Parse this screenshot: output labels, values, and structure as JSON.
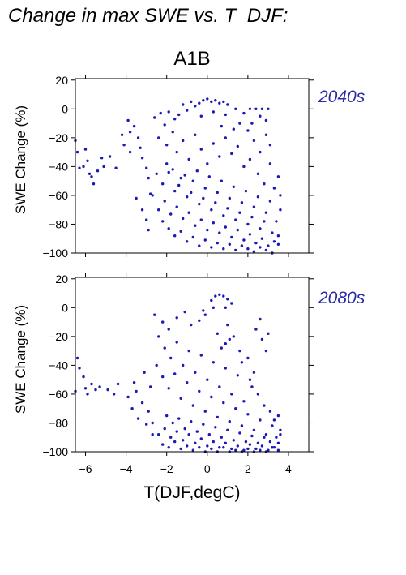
{
  "figure": {
    "title": "Change in max SWE vs. T_DJF:",
    "scenario": "A1B",
    "xlabel": "T(DJF,degC)",
    "point_color": "#1a1ab4",
    "label_color": "#2a2aa8"
  },
  "chart_data": [
    {
      "type": "scatter",
      "period_label": "2040s",
      "ylabel": "SWE Change (%)",
      "xlabel": "",
      "xlim": [
        -6.5,
        5
      ],
      "ylim": [
        -100,
        21
      ],
      "xticks": [
        -6,
        -4,
        -2,
        0,
        2,
        4
      ],
      "yticks": [
        20,
        0,
        -20,
        -40,
        -60,
        -80,
        -100
      ],
      "x_tick_labels_shown": false,
      "grid": false,
      "points": [
        [
          -6.5,
          -22
        ],
        [
          -6.4,
          -30
        ],
        [
          -6.3,
          -41
        ],
        [
          -6.1,
          -40
        ],
        [
          -6.0,
          -28
        ],
        [
          -5.9,
          -36
        ],
        [
          -5.8,
          -45
        ],
        [
          -5.7,
          -47
        ],
        [
          -5.6,
          -52
        ],
        [
          -5.4,
          -43
        ],
        [
          -5.2,
          -34
        ],
        [
          -5.1,
          -40
        ],
        [
          -4.8,
          -33
        ],
        [
          -4.5,
          -41
        ],
        [
          -3.9,
          -8
        ],
        [
          -3.8,
          -16
        ],
        [
          -3.6,
          -12
        ],
        [
          -3.4,
          -20
        ],
        [
          -3.3,
          -27
        ],
        [
          -3.2,
          -34
        ],
        [
          -3.0,
          -41
        ],
        [
          -2.9,
          -48
        ],
        [
          -3.5,
          -62
        ],
        [
          -3.2,
          -70
        ],
        [
          -3.0,
          -77
        ],
        [
          -2.9,
          -84
        ],
        [
          -2.8,
          -59
        ],
        [
          -4.1,
          -25
        ],
        [
          -4.2,
          -18
        ],
        [
          -3.8,
          -30
        ],
        [
          -2.6,
          -6
        ],
        [
          -2.3,
          -3
        ],
        [
          -2.1,
          -11
        ],
        [
          -1.9,
          -2
        ],
        [
          -1.6,
          -7
        ],
        [
          -1.4,
          -4
        ],
        [
          -1.2,
          3
        ],
        [
          -1.0,
          -1
        ],
        [
          -0.8,
          5
        ],
        [
          -0.6,
          2
        ],
        [
          -0.4,
          4
        ],
        [
          -0.2,
          6
        ],
        [
          0.0,
          7
        ],
        [
          0.2,
          5
        ],
        [
          0.4,
          6
        ],
        [
          0.6,
          4
        ],
        [
          0.8,
          5
        ],
        [
          1.0,
          3
        ],
        [
          -0.3,
          -5
        ],
        [
          0.3,
          -2
        ],
        [
          0.9,
          -4
        ],
        [
          1.4,
          0
        ],
        [
          1.8,
          -3
        ],
        [
          2.1,
          0
        ],
        [
          2.4,
          0
        ],
        [
          2.7,
          0
        ],
        [
          3.0,
          0
        ],
        [
          2.6,
          -5
        ],
        [
          2.9,
          -8
        ],
        [
          2.2,
          -10
        ],
        [
          -2.4,
          -20
        ],
        [
          -2.0,
          -25
        ],
        [
          -1.7,
          -16
        ],
        [
          -1.5,
          -30
        ],
        [
          -1.2,
          -22
        ],
        [
          -0.9,
          -35
        ],
        [
          -0.6,
          -18
        ],
        [
          -0.3,
          -28
        ],
        [
          0.0,
          -38
        ],
        [
          0.3,
          -24
        ],
        [
          0.6,
          -33
        ],
        [
          0.9,
          -20
        ],
        [
          1.2,
          -31
        ],
        [
          1.5,
          -26
        ],
        [
          1.8,
          -40
        ],
        [
          2.1,
          -35
        ],
        [
          -2.5,
          -45
        ],
        [
          -2.2,
          -52
        ],
        [
          -1.9,
          -44
        ],
        [
          -1.6,
          -57
        ],
        [
          -1.3,
          -48
        ],
        [
          -1.0,
          -61
        ],
        [
          -0.7,
          -50
        ],
        [
          -0.4,
          -66
        ],
        [
          -0.1,
          -55
        ],
        [
          0.2,
          -70
        ],
        [
          0.5,
          -58
        ],
        [
          0.8,
          -74
        ],
        [
          1.1,
          -62
        ],
        [
          1.4,
          -77
        ],
        [
          1.7,
          -65
        ],
        [
          2.0,
          -80
        ],
        [
          2.3,
          -68
        ],
        [
          2.6,
          -83
        ],
        [
          2.9,
          -72
        ],
        [
          3.2,
          -86
        ],
        [
          3.4,
          -78
        ],
        [
          3.6,
          -70
        ],
        [
          3.5,
          -88
        ],
        [
          3.3,
          -92
        ],
        [
          3.0,
          -95
        ],
        [
          2.7,
          -90
        ],
        [
          2.4,
          -93
        ],
        [
          2.1,
          -87
        ],
        [
          1.8,
          -91
        ],
        [
          1.5,
          -84
        ],
        [
          1.2,
          -89
        ],
        [
          0.9,
          -82
        ],
        [
          0.6,
          -86
        ],
        [
          0.3,
          -79
        ],
        [
          0.0,
          -84
        ],
        [
          -0.3,
          -77
        ],
        [
          -0.6,
          -81
        ],
        [
          -0.9,
          -72
        ],
        [
          -1.2,
          -76
        ],
        [
          -1.5,
          -68
        ],
        [
          -1.8,
          -73
        ],
        [
          -2.1,
          -64
        ],
        [
          -2.4,
          -70
        ],
        [
          -2.7,
          -60
        ],
        [
          -2.2,
          -78
        ],
        [
          -1.9,
          -83
        ],
        [
          -1.6,
          -88
        ],
        [
          -1.3,
          -85
        ],
        [
          -1.0,
          -92
        ],
        [
          -0.7,
          -89
        ],
        [
          -0.4,
          -95
        ],
        [
          -0.1,
          -91
        ],
        [
          0.2,
          -96
        ],
        [
          0.5,
          -93
        ],
        [
          0.8,
          -97
        ],
        [
          1.1,
          -94
        ],
        [
          1.4,
          -98
        ],
        [
          1.7,
          -95
        ],
        [
          2.0,
          -97
        ],
        [
          2.3,
          -99
        ],
        [
          2.6,
          -96
        ],
        [
          2.9,
          -98
        ],
        [
          3.2,
          -100
        ],
        [
          3.5,
          -94
        ],
        [
          -2.0,
          -38
        ],
        [
          -1.7,
          -42
        ],
        [
          -1.4,
          -53
        ],
        [
          -1.1,
          -46
        ],
        [
          -0.8,
          -58
        ],
        [
          -0.5,
          -43
        ],
        [
          -0.2,
          -62
        ],
        [
          0.1,
          -47
        ],
        [
          0.4,
          -65
        ],
        [
          0.7,
          -50
        ],
        [
          1.0,
          -69
        ],
        [
          1.3,
          -54
        ],
        [
          1.6,
          -72
        ],
        [
          1.9,
          -57
        ],
        [
          2.2,
          -75
        ],
        [
          2.5,
          -61
        ],
        [
          2.8,
          -78
        ],
        [
          3.1,
          -64
        ],
        [
          2.5,
          -45
        ],
        [
          2.8,
          -52
        ],
        [
          3.1,
          -38
        ],
        [
          3.3,
          -55
        ],
        [
          3.5,
          -47
        ],
        [
          3.6,
          -60
        ],
        [
          2.0,
          -15
        ],
        [
          2.3,
          -22
        ],
        [
          2.6,
          -30
        ],
        [
          2.9,
          -18
        ],
        [
          3.1,
          -25
        ],
        [
          1.6,
          -10
        ],
        [
          1.3,
          -14
        ],
        [
          0.7,
          -12
        ]
      ]
    },
    {
      "type": "scatter",
      "period_label": "2080s",
      "ylabel": "SWE Change (%)",
      "xlabel": "T(DJF,degC)",
      "xlim": [
        -6.5,
        5
      ],
      "ylim": [
        -100,
        21
      ],
      "xticks": [
        -6,
        -4,
        -2,
        0,
        2,
        4
      ],
      "yticks": [
        20,
        0,
        -20,
        -40,
        -60,
        -80,
        -100
      ],
      "x_tick_labels_shown": true,
      "grid": false,
      "points": [
        [
          -6.5,
          -58
        ],
        [
          -6.4,
          -35
        ],
        [
          -6.3,
          -42
        ],
        [
          -6.1,
          -48
        ],
        [
          -6.0,
          -56
        ],
        [
          -5.9,
          -60
        ],
        [
          -5.7,
          -53
        ],
        [
          -5.5,
          -57
        ],
        [
          -5.3,
          -55
        ],
        [
          -4.9,
          -57
        ],
        [
          -4.6,
          -60
        ],
        [
          -4.4,
          -53
        ],
        [
          -3.9,
          -62
        ],
        [
          -3.7,
          -70
        ],
        [
          -3.5,
          -58
        ],
        [
          -3.4,
          -77
        ],
        [
          -3.2,
          -66
        ],
        [
          -3.0,
          -81
        ],
        [
          -2.9,
          -72
        ],
        [
          -2.7,
          -88
        ],
        [
          -3.6,
          -52
        ],
        [
          -3.1,
          -45
        ],
        [
          -2.8,
          -55
        ],
        [
          -2.6,
          -5
        ],
        [
          -2.2,
          -10
        ],
        [
          -1.9,
          -15
        ],
        [
          -1.5,
          -7
        ],
        [
          -1.1,
          -3
        ],
        [
          -0.8,
          -12
        ],
        [
          -0.4,
          -9
        ],
        [
          -0.1,
          -5
        ],
        [
          0.2,
          5
        ],
        [
          0.4,
          8
        ],
        [
          0.6,
          9
        ],
        [
          0.8,
          8
        ],
        [
          1.0,
          6
        ],
        [
          1.2,
          3
        ],
        [
          0.9,
          0
        ],
        [
          0.3,
          0
        ],
        [
          -0.2,
          -2
        ],
        [
          0.5,
          -18
        ],
        [
          0.9,
          -25
        ],
        [
          1.3,
          -20
        ],
        [
          1.0,
          -12
        ],
        [
          2.4,
          -15
        ],
        [
          2.7,
          -22
        ],
        [
          2.9,
          -30
        ],
        [
          3.0,
          -18
        ],
        [
          2.6,
          -8
        ],
        [
          -2.4,
          -20
        ],
        [
          -2.1,
          -28
        ],
        [
          -1.8,
          -35
        ],
        [
          -1.5,
          -24
        ],
        [
          -1.2,
          -40
        ],
        [
          -0.9,
          -30
        ],
        [
          -0.6,
          -45
        ],
        [
          -0.3,
          -33
        ],
        [
          0.0,
          -50
        ],
        [
          0.3,
          -38
        ],
        [
          0.6,
          -55
        ],
        [
          0.9,
          -42
        ],
        [
          1.2,
          -60
        ],
        [
          1.5,
          -47
        ],
        [
          1.8,
          -65
        ],
        [
          2.1,
          -50
        ],
        [
          -2.5,
          -40
        ],
        [
          -2.2,
          -48
        ],
        [
          -1.9,
          -56
        ],
        [
          -1.6,
          -46
        ],
        [
          -1.3,
          -63
        ],
        [
          -1.0,
          -52
        ],
        [
          -0.7,
          -68
        ],
        [
          -0.4,
          -58
        ],
        [
          -0.1,
          -72
        ],
        [
          0.2,
          -62
        ],
        [
          0.5,
          -76
        ],
        [
          0.8,
          -66
        ],
        [
          1.1,
          -79
        ],
        [
          1.4,
          -70
        ],
        [
          1.7,
          -82
        ],
        [
          2.0,
          -74
        ],
        [
          2.3,
          -85
        ],
        [
          2.6,
          -78
        ],
        [
          2.9,
          -88
        ],
        [
          3.2,
          -82
        ],
        [
          3.4,
          -90
        ],
        [
          3.6,
          -85
        ],
        [
          3.5,
          -94
        ],
        [
          3.3,
          -97
        ],
        [
          3.0,
          -99
        ],
        [
          2.7,
          -96
        ],
        [
          2.4,
          -98
        ],
        [
          2.1,
          -95
        ],
        [
          1.8,
          -99
        ],
        [
          1.5,
          -96
        ],
        [
          1.2,
          -98
        ],
        [
          0.9,
          -94
        ],
        [
          0.6,
          -97
        ],
        [
          0.3,
          -93
        ],
        [
          0.0,
          -96
        ],
        [
          -0.3,
          -91
        ],
        [
          -0.6,
          -94
        ],
        [
          -0.9,
          -88
        ],
        [
          -1.2,
          -92
        ],
        [
          -1.5,
          -86
        ],
        [
          -1.8,
          -90
        ],
        [
          -2.1,
          -84
        ],
        [
          -2.4,
          -88
        ],
        [
          -2.7,
          -80
        ],
        [
          -2.2,
          -95
        ],
        [
          -1.9,
          -97
        ],
        [
          -1.6,
          -93
        ],
        [
          -1.3,
          -98
        ],
        [
          -1.0,
          -96
        ],
        [
          -0.7,
          -99
        ],
        [
          -0.4,
          -97
        ],
        [
          -0.1,
          -100
        ],
        [
          0.2,
          -98
        ],
        [
          0.5,
          -100
        ],
        [
          0.8,
          -97
        ],
        [
          1.1,
          -100
        ],
        [
          1.4,
          -99
        ],
        [
          1.7,
          -100
        ],
        [
          2.0,
          -98
        ],
        [
          2.3,
          -100
        ],
        [
          2.6,
          -99
        ],
        [
          2.9,
          -100
        ],
        [
          3.2,
          -97
        ],
        [
          3.5,
          -99
        ],
        [
          -2.0,
          -75
        ],
        [
          -1.7,
          -80
        ],
        [
          -1.4,
          -77
        ],
        [
          -1.1,
          -84
        ],
        [
          -0.8,
          -79
        ],
        [
          -0.5,
          -86
        ],
        [
          -0.2,
          -81
        ],
        [
          0.1,
          -88
        ],
        [
          0.4,
          -83
        ],
        [
          0.7,
          -90
        ],
        [
          1.0,
          -85
        ],
        [
          1.3,
          -92
        ],
        [
          1.6,
          -87
        ],
        [
          1.9,
          -93
        ],
        [
          2.2,
          -89
        ],
        [
          2.5,
          -94
        ],
        [
          2.8,
          -90
        ],
        [
          3.1,
          -93
        ],
        [
          2.5,
          -60
        ],
        [
          2.8,
          -68
        ],
        [
          3.1,
          -72
        ],
        [
          3.3,
          -78
        ],
        [
          3.5,
          -75
        ],
        [
          3.6,
          -88
        ],
        [
          2.0,
          -35
        ],
        [
          2.3,
          -45
        ],
        [
          1.6,
          -30
        ],
        [
          1.1,
          -22
        ],
        [
          0.7,
          -28
        ],
        [
          1.7,
          -38
        ],
        [
          2.2,
          -55
        ]
      ]
    }
  ]
}
